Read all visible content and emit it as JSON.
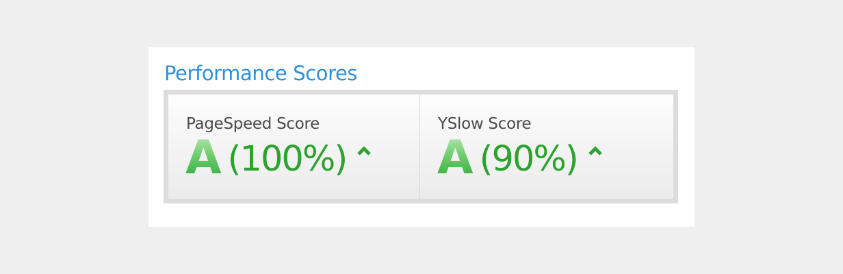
{
  "section": {
    "title": "Performance Scores"
  },
  "scores": [
    {
      "label": "PageSpeed Score",
      "grade": "A",
      "percent": "(100%)",
      "trend_icon": "chevron-up-icon"
    },
    {
      "label": "YSlow Score",
      "grade": "A",
      "percent": "(90%)",
      "trend_icon": "chevron-up-icon"
    }
  ],
  "colors": {
    "title": "#2f8fd6",
    "grade_green": "#57c05c",
    "percent_green": "#2ca22f",
    "background": "#efefef",
    "card": "#ffffff",
    "border_gray": "#dcdcdc"
  }
}
